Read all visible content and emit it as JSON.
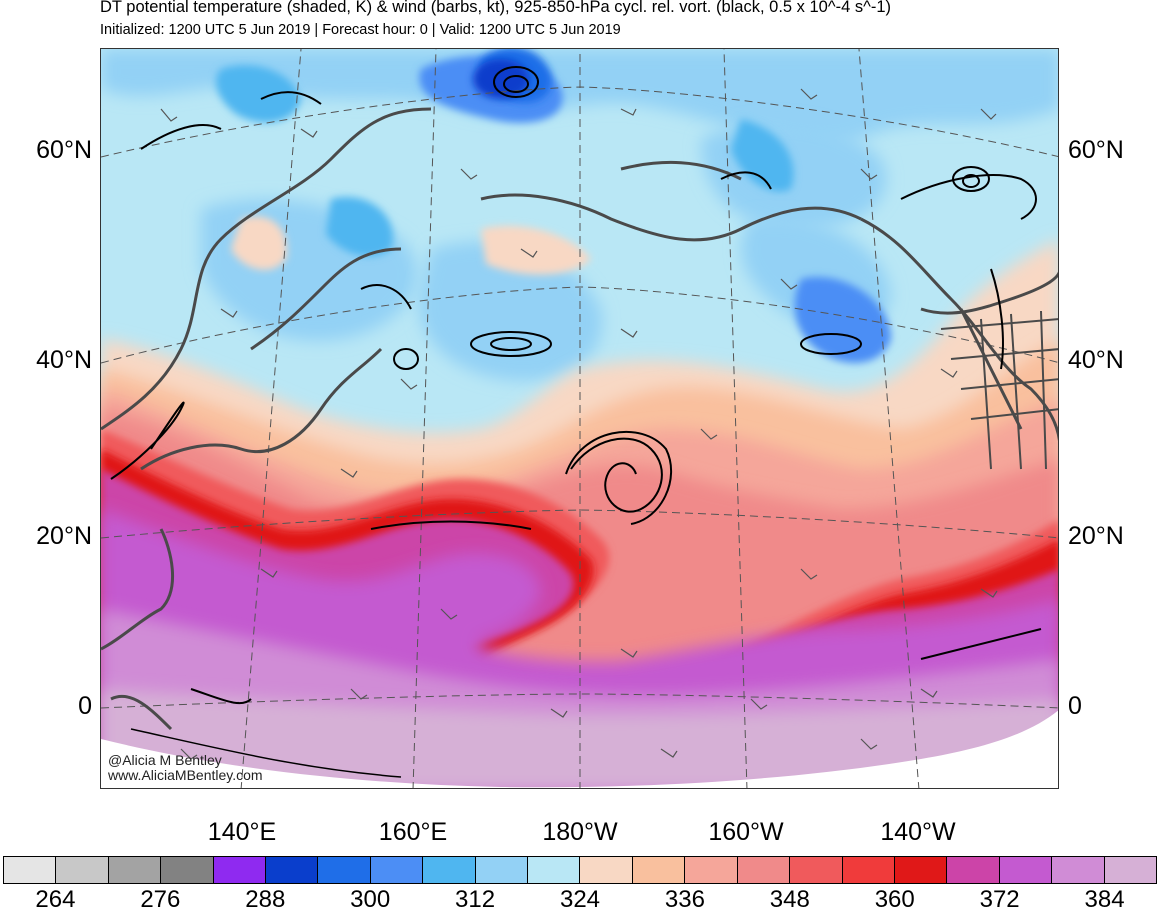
{
  "header": {
    "title": "DT potential temperature (shaded, K) & wind (barbs, kt), 925-850-hPa cycl. rel. vort. (black, 0.5 x 10^-4 s^-1)",
    "subtitle": "Initialized: 1200 UTC 5 Jun 2019 | Forecast hour: 0 | Valid: 1200 UTC 5 Jun 2019"
  },
  "map": {
    "lat_labels": [
      "60°N",
      "40°N",
      "20°N",
      "0"
    ],
    "lon_labels": [
      "140°E",
      "160°E",
      "180°W",
      "160°W",
      "140°W"
    ],
    "credit": [
      "@Alicia M Bentley",
      "www.AliciaMBentley.com"
    ]
  },
  "colorbar": {
    "colors": [
      "#e5e5e5",
      "#c8c8c8",
      "#a3a3a3",
      "#828282",
      "#8f2af0",
      "#0a3ecc",
      "#1f6ee8",
      "#4c8ef5",
      "#4fb6f0",
      "#93d1f5",
      "#b9e7f5",
      "#f8d8c4",
      "#f9c09e",
      "#f5a69a",
      "#f08a8a",
      "#f05a5c",
      "#f03b3b",
      "#e01818",
      "#cc44a8",
      "#c45ad0",
      "#d08cd6",
      "#d6b0d6"
    ],
    "labels": [
      "264",
      "276",
      "288",
      "300",
      "312",
      "324",
      "336",
      "348",
      "360",
      "372",
      "384"
    ]
  }
}
